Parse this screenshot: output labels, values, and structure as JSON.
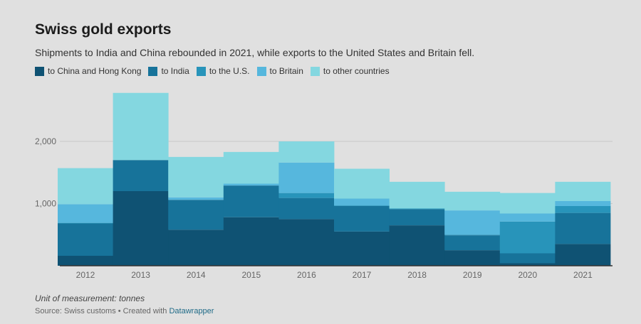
{
  "chart_data": {
    "type": "bar",
    "stacked": true,
    "title": "Swiss gold exports",
    "subtitle": "Shipments to India and China rebounded in 2021, while exports to the United States and Britain fell.",
    "categories": [
      "2012",
      "2013",
      "2014",
      "2015",
      "2016",
      "2017",
      "2018",
      "2019",
      "2020",
      "2021"
    ],
    "series": [
      {
        "name": "to China and Hong Kong",
        "color": "#0f5273",
        "values": [
          160,
          1200,
          580,
          780,
          750,
          550,
          650,
          250,
          40,
          350
        ]
      },
      {
        "name": "to India",
        "color": "#17739a",
        "values": [
          520,
          500,
          480,
          510,
          340,
          410,
          260,
          240,
          160,
          500
        ]
      },
      {
        "name": "to the U.S.",
        "color": "#2894ba",
        "values": [
          10,
          0,
          0,
          0,
          80,
          10,
          10,
          10,
          510,
          110
        ]
      },
      {
        "name": "to Britain",
        "color": "#56b7dd",
        "values": [
          300,
          0,
          40,
          30,
          490,
          110,
          0,
          390,
          130,
          80
        ]
      },
      {
        "name": "to other countries",
        "color": "#84d7e0",
        "values": [
          580,
          1080,
          650,
          510,
          340,
          480,
          430,
          300,
          330,
          310
        ]
      }
    ],
    "yticks": [
      1000,
      2000
    ],
    "ytick_labels": [
      "1,000",
      "2,000"
    ],
    "ylim": [
      0,
      2800
    ],
    "xlabel": "",
    "ylabel": "",
    "grid": true,
    "legend_position": "top-left"
  },
  "footer": {
    "note": "Unit of measurement: tonnes",
    "source_prefix": "Source: Swiss customs • Created with ",
    "source_link": "Datawrapper"
  }
}
